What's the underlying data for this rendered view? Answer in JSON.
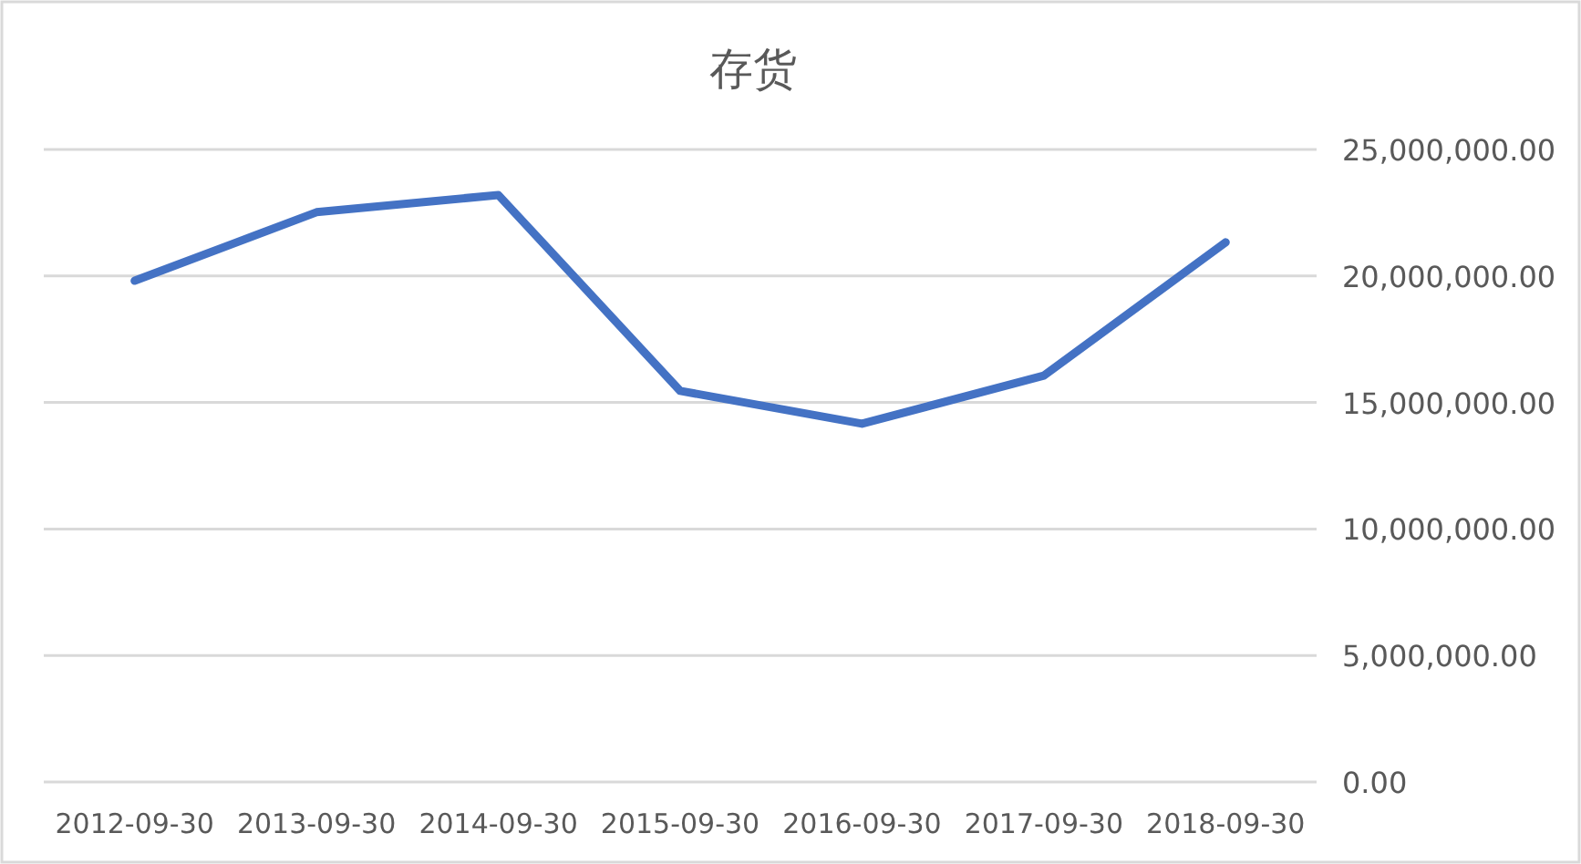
{
  "chart_data": {
    "type": "line",
    "title": "存货",
    "categories": [
      "2012-09-30",
      "2013-09-30",
      "2014-09-30",
      "2015-09-30",
      "2016-09-30",
      "2017-09-30",
      "2018-09-30"
    ],
    "series": [
      {
        "color": "#4472c4",
        "values": [
          19810000,
          22520000,
          23200000,
          15460000,
          14160000,
          16060000,
          21330000
        ]
      }
    ],
    "ylim": [
      0,
      25000000
    ],
    "yticks": [
      {
        "value": 0,
        "label": "0.00"
      },
      {
        "value": 5000000,
        "label": "5,000,000.00"
      },
      {
        "value": 10000000,
        "label": "10,000,000.00"
      },
      {
        "value": 15000000,
        "label": "15,000,000.00"
      },
      {
        "value": 20000000,
        "label": "20,000,000.00"
      },
      {
        "value": 25000000,
        "label": "25,000,000.00"
      }
    ],
    "grid": "y",
    "marker": "none",
    "line_style": "solid"
  }
}
